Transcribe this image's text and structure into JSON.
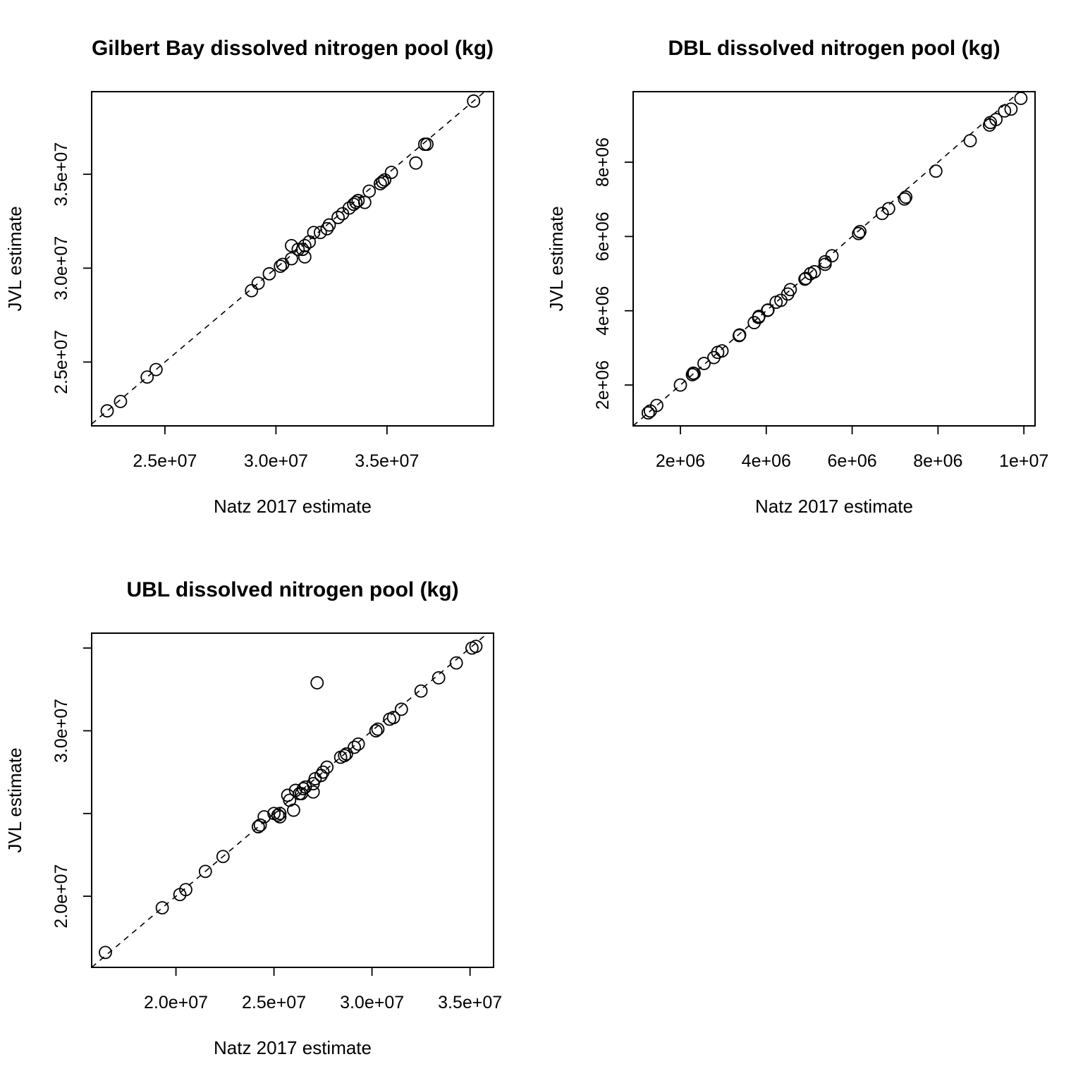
{
  "chart_data": [
    {
      "type": "scatter",
      "title": "Gilbert Bay dissolved nitrogen pool (kg)",
      "xlabel": "Natz 2017 estimate",
      "ylabel": "JVL estimate",
      "xlim": [
        21700000,
        39800000
      ],
      "ylim": [
        21600000,
        39400000
      ],
      "xticks": [
        25000000,
        30000000,
        35000000
      ],
      "xtick_labels": [
        "2.5e+07",
        "3.0e+07",
        "3.5e+07"
      ],
      "yticks": [
        25000000,
        30000000,
        35000000
      ],
      "ytick_labels": [
        "2.5e+07",
        "3.0e+07",
        "3.5e+07"
      ],
      "reference_line": "y = x",
      "grid": false,
      "x": [
        22400000,
        23000000,
        24200000,
        24600000,
        28900000,
        29200000,
        29700000,
        30200000,
        30300000,
        30700000,
        30700000,
        31000000,
        31200000,
        31300000,
        31300000,
        31500000,
        31700000,
        32000000,
        32300000,
        32400000,
        32800000,
        33000000,
        33300000,
        33500000,
        33600000,
        33700000,
        34000000,
        34200000,
        34700000,
        34800000,
        34900000,
        35200000,
        36300000,
        36700000,
        36800000,
        38900000
      ],
      "y": [
        22400000,
        22900000,
        24200000,
        24600000,
        28800000,
        29200000,
        29700000,
        30100000,
        30200000,
        30500000,
        31200000,
        31000000,
        31000000,
        31200000,
        30600000,
        31400000,
        31900000,
        31900000,
        32100000,
        32300000,
        32700000,
        32900000,
        33200000,
        33400000,
        33500000,
        33600000,
        33500000,
        34100000,
        34500000,
        34600000,
        34700000,
        35100000,
        35600000,
        36600000,
        36600000,
        38900000
      ]
    },
    {
      "type": "scatter",
      "title": "DBL dissolved nitrogen pool (kg)",
      "xlabel": "Natz 2017 estimate",
      "ylabel": "JVL estimate",
      "xlim": [
        900000,
        10260000
      ],
      "ylim": [
        900000,
        9900000
      ],
      "xticks": [
        2000000,
        4000000,
        6000000,
        8000000,
        10000000
      ],
      "xtick_labels": [
        "2e+06",
        "4e+06",
        "6e+06",
        "8e+06",
        "1e+07"
      ],
      "yticks": [
        2000000,
        4000000,
        6000000,
        8000000
      ],
      "ytick_labels": [
        "2e+06",
        "4e+06",
        "6e+06",
        "8e+06"
      ],
      "reference_line": "y = x",
      "grid": false,
      "x": [
        1250000,
        1300000,
        1450000,
        2000000,
        2280000,
        2300000,
        2320000,
        2550000,
        2780000,
        2870000,
        2970000,
        3370000,
        3380000,
        3720000,
        3820000,
        3830000,
        4030000,
        4040000,
        4230000,
        4340000,
        4500000,
        4560000,
        4900000,
        4920000,
        5030000,
        5120000,
        5370000,
        5370000,
        5530000,
        6150000,
        6180000,
        6700000,
        6850000,
        7220000,
        7250000,
        7950000,
        8750000,
        9200000,
        9220000,
        9350000,
        9550000,
        9700000,
        9930000
      ],
      "y": [
        1250000,
        1300000,
        1450000,
        2000000,
        2280000,
        2320000,
        2310000,
        2580000,
        2740000,
        2880000,
        2920000,
        3330000,
        3350000,
        3680000,
        3820000,
        3850000,
        4010000,
        4020000,
        4230000,
        4280000,
        4450000,
        4570000,
        4850000,
        4870000,
        5000000,
        5050000,
        5250000,
        5320000,
        5480000,
        6080000,
        6130000,
        6620000,
        6750000,
        7010000,
        7060000,
        7760000,
        8580000,
        9000000,
        9070000,
        9150000,
        9380000,
        9430000,
        9720000
      ]
    },
    {
      "type": "scatter",
      "title": "UBL dissolved nitrogen pool (kg)",
      "xlabel": "Natz 2017 estimate",
      "ylabel": "JVL estimate",
      "xlim": [
        15700000,
        36200000
      ],
      "ylim": [
        15700000,
        35900000
      ],
      "xticks": [
        20000000,
        25000000,
        30000000,
        35000000
      ],
      "xtick_labels": [
        "2.0e+07",
        "2.5e+07",
        "3.0e+07",
        "3.5e+07"
      ],
      "yticks": [
        20000000,
        25000000,
        30000000,
        35000000
      ],
      "ytick_labels": [
        "2.0e+07",
        "",
        "3.0e+07",
        ""
      ],
      "reference_line": "y = x",
      "grid": false,
      "x": [
        16400000,
        19300000,
        20200000,
        20500000,
        21500000,
        22400000,
        24200000,
        24300000,
        24500000,
        25000000,
        25200000,
        25300000,
        25300000,
        25700000,
        25800000,
        26000000,
        26100000,
        26300000,
        26400000,
        26500000,
        26600000,
        27000000,
        27000000,
        27200000,
        27100000,
        27400000,
        27500000,
        27700000,
        28400000,
        28600000,
        28700000,
        29100000,
        29300000,
        30200000,
        30300000,
        30900000,
        31100000,
        31500000,
        32500000,
        33400000,
        34300000,
        35100000,
        35300000
      ],
      "y": [
        16600000,
        19300000,
        20100000,
        20400000,
        21500000,
        22400000,
        24200000,
        24300000,
        24800000,
        25000000,
        24900000,
        25000000,
        24800000,
        26100000,
        25800000,
        25200000,
        26400000,
        26200000,
        26200000,
        26500000,
        26600000,
        26300000,
        26800000,
        32900000,
        27100000,
        27300000,
        27500000,
        27800000,
        28400000,
        28500000,
        28600000,
        29000000,
        29200000,
        30000000,
        30100000,
        30700000,
        30800000,
        31300000,
        32400000,
        33200000,
        34100000,
        35000000,
        35100000
      ]
    }
  ]
}
